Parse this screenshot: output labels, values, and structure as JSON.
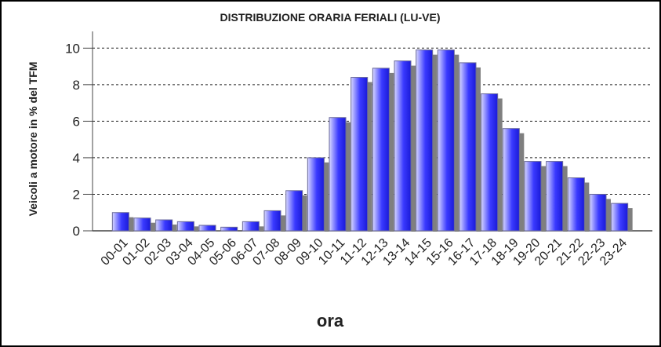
{
  "chart_data": {
    "type": "bar",
    "title": "DISTRIBUZIONE ORARIA FERIALI (LU-VE)",
    "ylabel": "Veicoli a motore in % del TFM",
    "xlabel": "ora",
    "categories": [
      "00-01",
      "01-02",
      "02-03",
      "03-04",
      "04-05",
      "05-06",
      "06-07",
      "07-08",
      "08-09",
      "09-10",
      "10-11",
      "11-12",
      "12-13",
      "13-14",
      "14-15",
      "15-16",
      "16-17",
      "17-18",
      "18-19",
      "19-20",
      "20-21",
      "21-22",
      "22-23",
      "23-24"
    ],
    "values": [
      1.0,
      0.7,
      0.6,
      0.5,
      0.3,
      0.2,
      0.5,
      1.1,
      2.2,
      4.0,
      6.2,
      8.4,
      8.9,
      9.3,
      9.9,
      9.9,
      9.2,
      7.5,
      5.6,
      3.8,
      3.8,
      2.9,
      2.0,
      1.5
    ],
    "color": "#2a2aff",
    "shadow_color": "#7f7f7f",
    "ylim": [
      0,
      10.4
    ],
    "yticks": [
      0,
      2,
      4,
      6,
      8,
      10
    ],
    "grid": true
  }
}
